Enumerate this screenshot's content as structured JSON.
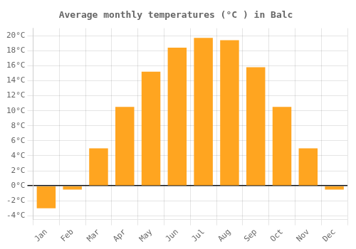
{
  "chart_data": {
    "type": "bar",
    "title": "Average monthly temperatures (°C ) in Balc",
    "categories": [
      "Jan",
      "Feb",
      "Mar",
      "Apr",
      "May",
      "Jun",
      "Jul",
      "Aug",
      "Sep",
      "Oct",
      "Nov",
      "Dec"
    ],
    "values": [
      -3.0,
      -0.5,
      5.0,
      10.5,
      15.2,
      18.4,
      19.7,
      19.4,
      15.8,
      10.5,
      5.0,
      -0.5
    ],
    "color": "#FFA520",
    "ylim": [
      -4.5,
      21
    ],
    "yticks": [
      {
        "value": -4,
        "label": "-4°C"
      },
      {
        "value": -2,
        "label": "-2°C"
      },
      {
        "value": 0,
        "label": "0°C"
      },
      {
        "value": 2,
        "label": "2°C"
      },
      {
        "value": 4,
        "label": "4°C"
      },
      {
        "value": 6,
        "label": "6°C"
      },
      {
        "value": 8,
        "label": "8°C"
      },
      {
        "value": 10,
        "label": "10°C"
      },
      {
        "value": 12,
        "label": "12°C"
      },
      {
        "value": 14,
        "label": "14°C"
      },
      {
        "value": 16,
        "label": "16°C"
      },
      {
        "value": 18,
        "label": "18°C"
      },
      {
        "value": 20,
        "label": "20°C"
      }
    ],
    "grid": true
  }
}
